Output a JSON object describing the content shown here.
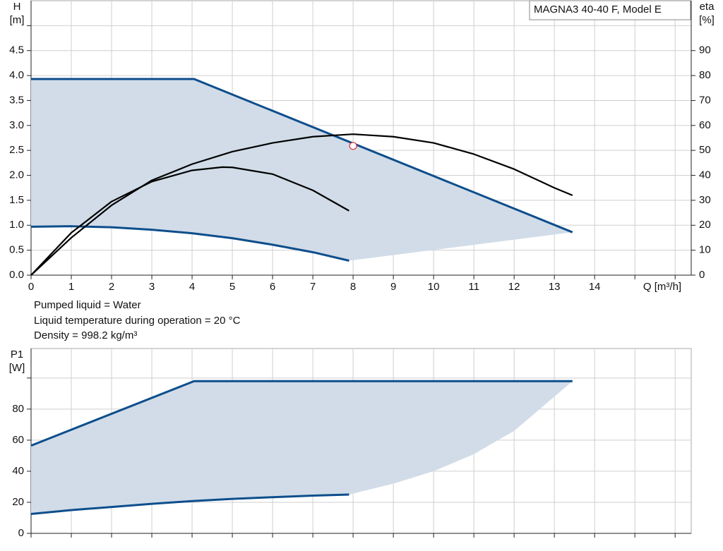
{
  "legend_box": "MAGNA3 40-40 F, Model E",
  "notes": [
    "Pumped liquid = Water",
    "Liquid temperature during operation = 20 °C",
    "Density = 998.2 kg/m³"
  ],
  "chart_data": [
    {
      "type": "line",
      "ylabel": [
        "H",
        "[m]"
      ],
      "y2label": [
        "eta",
        "[%]"
      ],
      "xlabel": "Q [m³/h]",
      "xlim": [
        0,
        16.4
      ],
      "xticks": [
        0,
        1,
        2,
        3,
        4,
        5,
        6,
        7,
        8,
        9,
        10,
        11,
        12,
        13,
        14
      ],
      "xgrid": [
        0,
        1,
        2,
        3,
        4,
        5,
        6,
        7,
        8,
        9,
        10,
        11,
        12,
        13,
        14,
        15,
        16
      ],
      "ylim": [
        0,
        5.5
      ],
      "yticks": [
        {
          "value": 0,
          "label": "0.0"
        },
        0.5,
        {
          "value": 1,
          "label": "1.0"
        },
        1.5,
        {
          "value": 2,
          "label": "2.0"
        },
        2.5,
        {
          "value": 3,
          "label": "3.0"
        },
        3.5,
        {
          "value": 4,
          "label": "4.0"
        },
        4.5
      ],
      "ygrid": [
        0,
        0.5,
        1,
        1.5,
        2,
        2.5,
        3,
        3.5,
        4,
        4.5,
        5
      ],
      "y2lim": [
        0,
        110
      ],
      "y2ticks": [
        0,
        10,
        20,
        30,
        40,
        50,
        60,
        70,
        80,
        90
      ],
      "band_fill": "#d1dce8",
      "series": [
        {
          "color": "#0d4e8c",
          "band": "upper",
          "x": [
            0,
            4.05,
            13.45
          ],
          "values": [
            3.93,
            3.93,
            0.86
          ]
        },
        {
          "color": "#0d4e8c",
          "band": "lower",
          "x": [
            0,
            1,
            2,
            3,
            4,
            5,
            6,
            7,
            7.9
          ],
          "values": [
            0.97,
            0.98,
            0.96,
            0.91,
            0.84,
            0.74,
            0.61,
            0.46,
            0.29
          ]
        },
        {
          "color": "#000000",
          "axis": "y2",
          "x": [
            0,
            1,
            2,
            3,
            4,
            5,
            6,
            7,
            8,
            9,
            10,
            11,
            12,
            13,
            13.45
          ],
          "values": [
            0,
            15,
            28,
            38,
            44.5,
            49.5,
            53,
            55.5,
            56.5,
            55.5,
            53,
            48.5,
            42.5,
            35,
            32
          ]
        },
        {
          "color": "#000000",
          "axis": "y2",
          "x": [
            0,
            1,
            2,
            3,
            4,
            4.75,
            5,
            6,
            7,
            7.9
          ],
          "values": [
            0,
            17,
            29.5,
            37.5,
            42,
            43.3,
            43.2,
            40.5,
            34,
            25.8
          ]
        }
      ],
      "point": {
        "x": 8,
        "y": 2.59,
        "color": "#e0303a"
      }
    },
    {
      "type": "line",
      "ylabel": [
        "P1",
        "[W]"
      ],
      "xlim": [
        0,
        16.4
      ],
      "xgrid": [
        0,
        1,
        2,
        3,
        4,
        5,
        6,
        7,
        8,
        9,
        10,
        11,
        12,
        13,
        14,
        15,
        16
      ],
      "ylim": [
        0,
        119
      ],
      "yticks": [
        0,
        20,
        40,
        60,
        80
      ],
      "ygrid": [
        0,
        20,
        40,
        60,
        80,
        100
      ],
      "band_fill": "#d1dce8",
      "series": [
        {
          "color": "#0d4e8c",
          "band": "upper",
          "x": [
            0,
            4.05,
            13.45
          ],
          "values": [
            56.5,
            98,
            98
          ]
        },
        {
          "color": "#0d4e8c",
          "band": "lower",
          "x": [
            0,
            1,
            2,
            3,
            4,
            5,
            6,
            7,
            7.9
          ],
          "values": [
            12.5,
            15,
            17,
            19,
            20.8,
            22.2,
            23.3,
            24.3,
            25
          ]
        }
      ],
      "band_edge": {
        "x": [
          7.9,
          9,
          10,
          11,
          12,
          13,
          13.45
        ],
        "values": [
          25,
          32,
          40,
          51,
          66,
          88,
          98
        ]
      }
    }
  ]
}
